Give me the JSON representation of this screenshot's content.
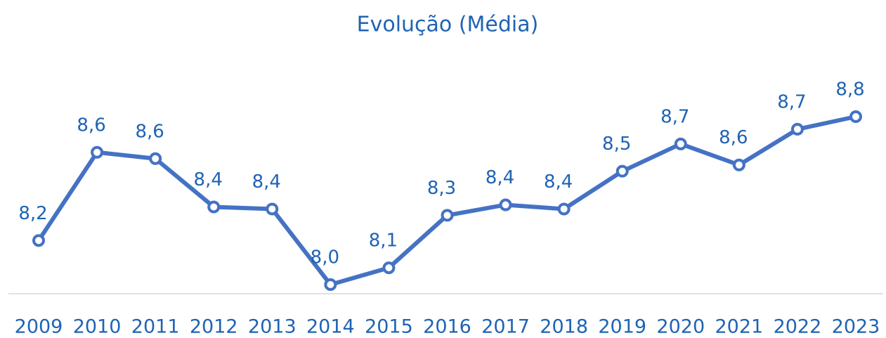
{
  "chart_data": {
    "type": "line",
    "title": "Evolução (Média)",
    "categories": [
      "2009",
      "2010",
      "2011",
      "2012",
      "2013",
      "2014",
      "2015",
      "2016",
      "2017",
      "2018",
      "2019",
      "2020",
      "2021",
      "2022",
      "2023"
    ],
    "series": [
      {
        "color": "#4472c4",
        "values": [
          8.21,
          8.63,
          8.6,
          8.37,
          8.36,
          8.0,
          8.08,
          8.33,
          8.38,
          8.36,
          8.54,
          8.67,
          8.57,
          8.74,
          8.8
        ],
        "value_labels": [
          "8,2",
          "8,6",
          "8,6",
          "8,4",
          "8,4",
          "8,0",
          "8,1",
          "8,3",
          "8,4",
          "8,4",
          "8,5",
          "8,7",
          "8,6",
          "8,7",
          "8,8"
        ]
      }
    ]
  }
}
